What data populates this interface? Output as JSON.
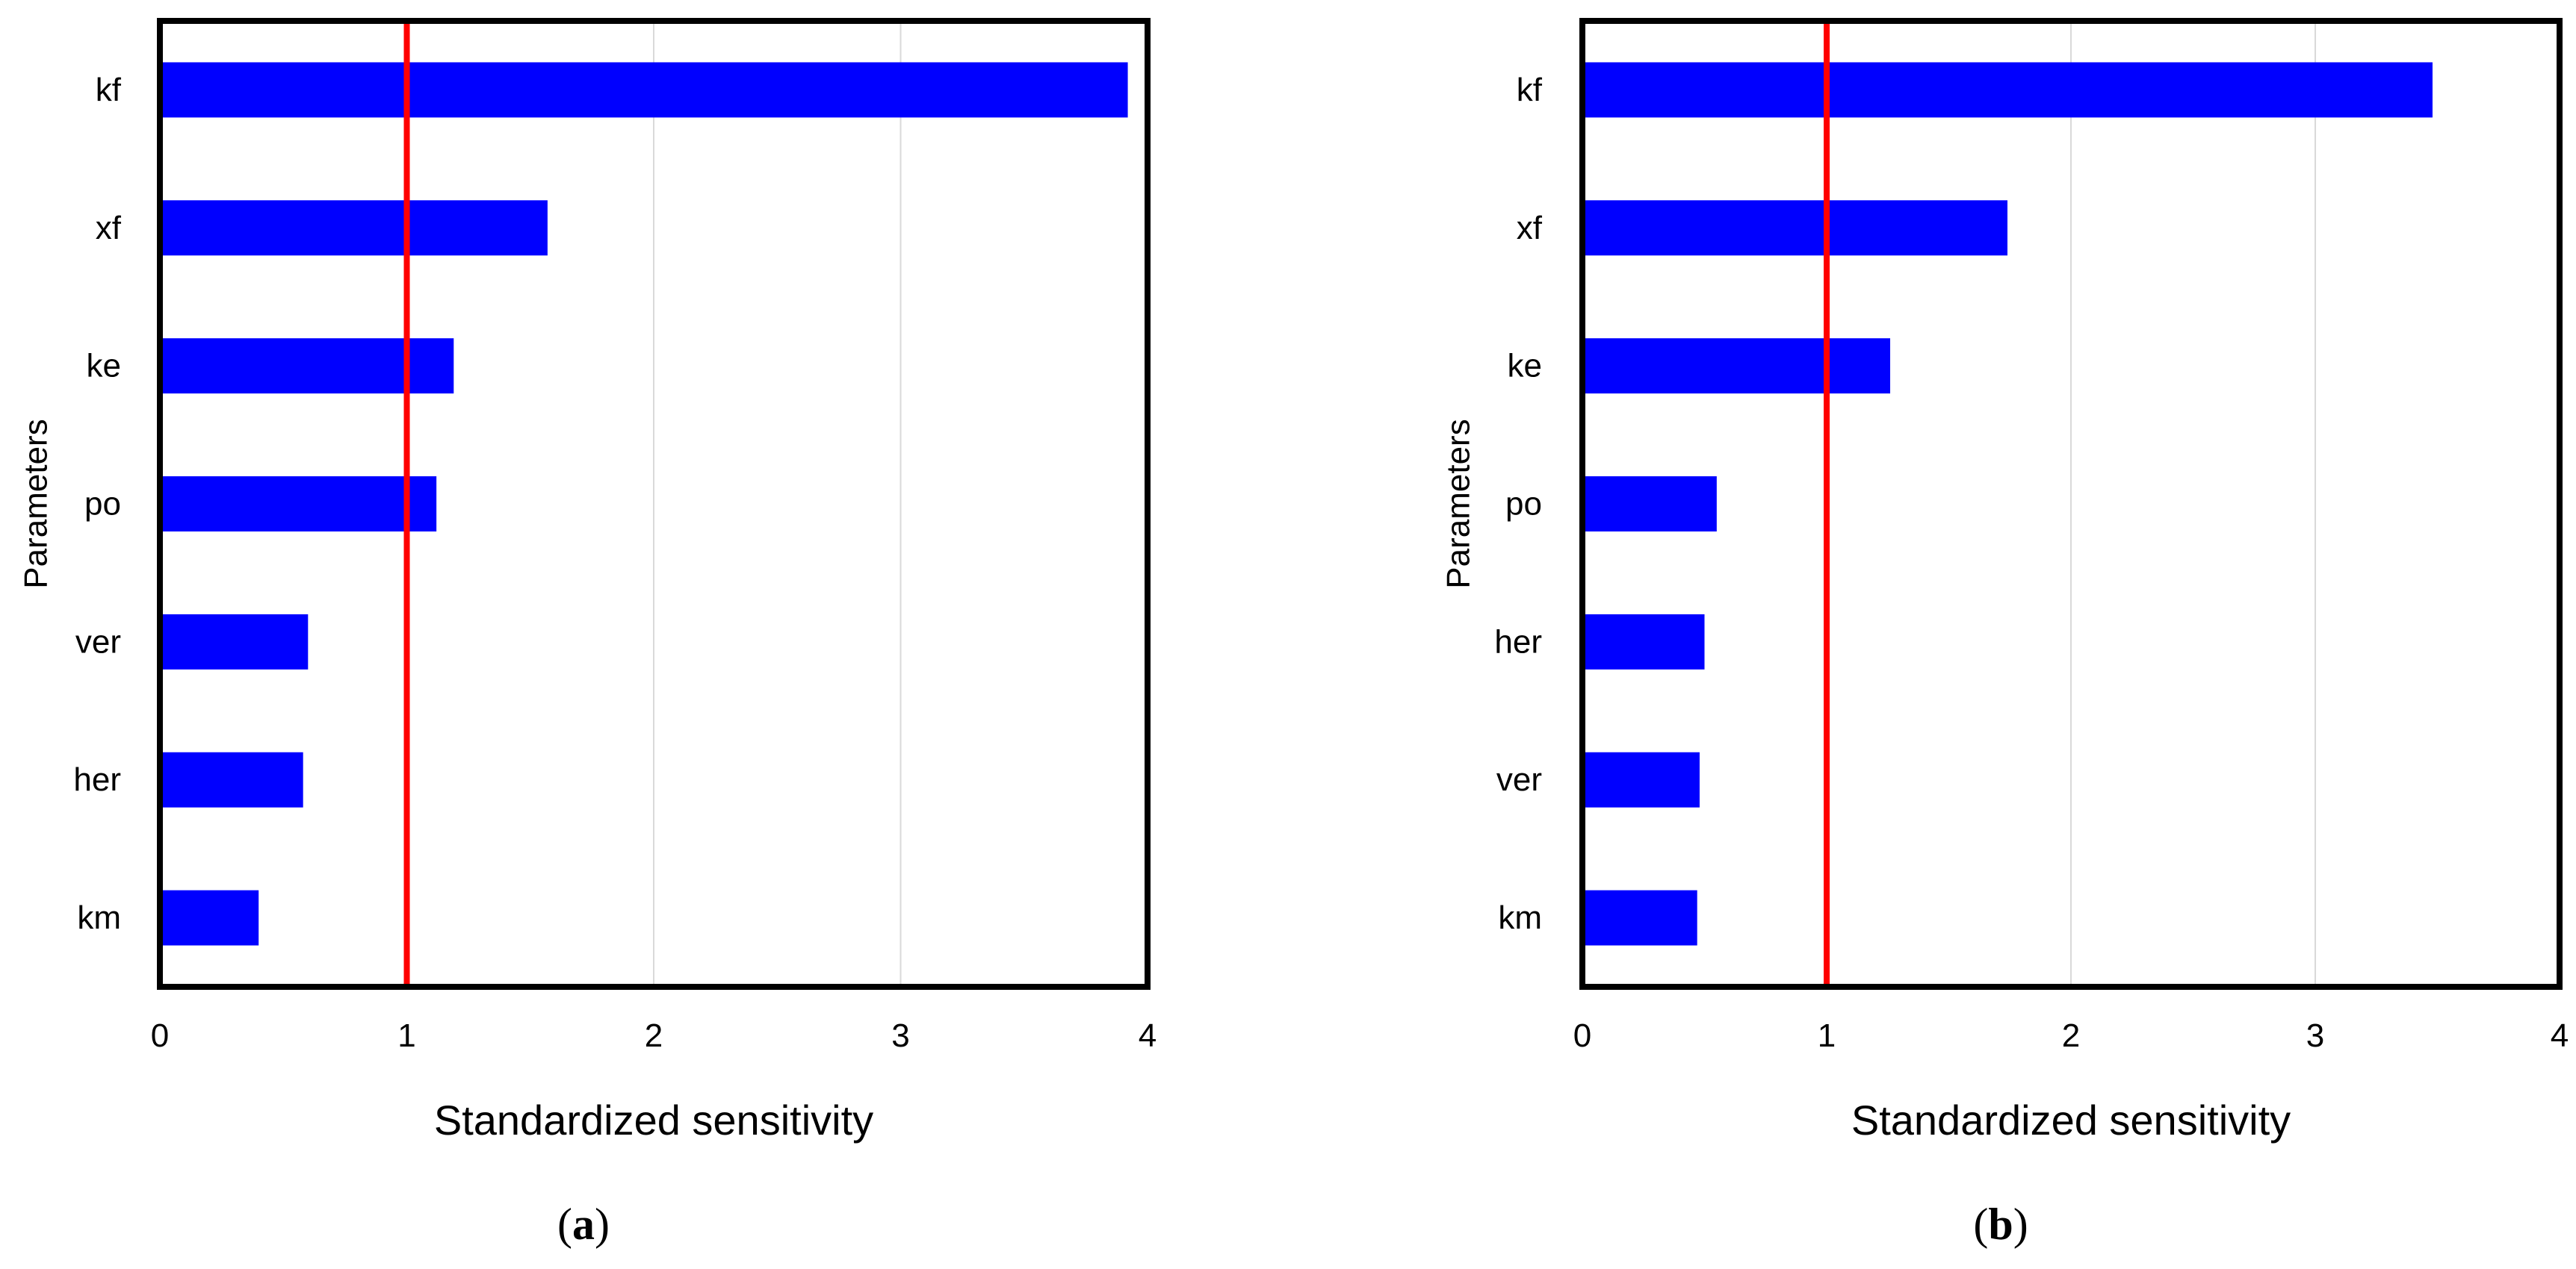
{
  "colors": {
    "bar": "#0000ff",
    "ref_line": "#ff0000",
    "grid": "#d9d9d9",
    "frame": "#000000"
  },
  "chart_data": [
    {
      "type": "bar",
      "orientation": "horizontal",
      "panel_label": "a",
      "xlabel": "Standardized sensitivity",
      "ylabel": "Parameters",
      "xlim": [
        0,
        4
      ],
      "xticks": [
        "0",
        "1",
        "2",
        "3",
        "4"
      ],
      "grid": "vertical",
      "reference_line": 1,
      "categories": [
        "kf",
        "xf",
        "ke",
        "po",
        "ver",
        "her",
        "km"
      ],
      "values": [
        3.92,
        1.57,
        1.19,
        1.12,
        0.6,
        0.58,
        0.4
      ]
    },
    {
      "type": "bar",
      "orientation": "horizontal",
      "panel_label": "b",
      "xlabel": "Standardized sensitivity",
      "ylabel": "Parameters",
      "xlim": [
        0,
        4
      ],
      "xticks": [
        "0",
        "1",
        "2",
        "3",
        "4"
      ],
      "grid": "vertical",
      "reference_line": 1,
      "categories": [
        "kf",
        "xf",
        "ke",
        "po",
        "her",
        "ver",
        "km"
      ],
      "values": [
        3.48,
        1.74,
        1.26,
        0.55,
        0.5,
        0.48,
        0.47
      ]
    }
  ]
}
